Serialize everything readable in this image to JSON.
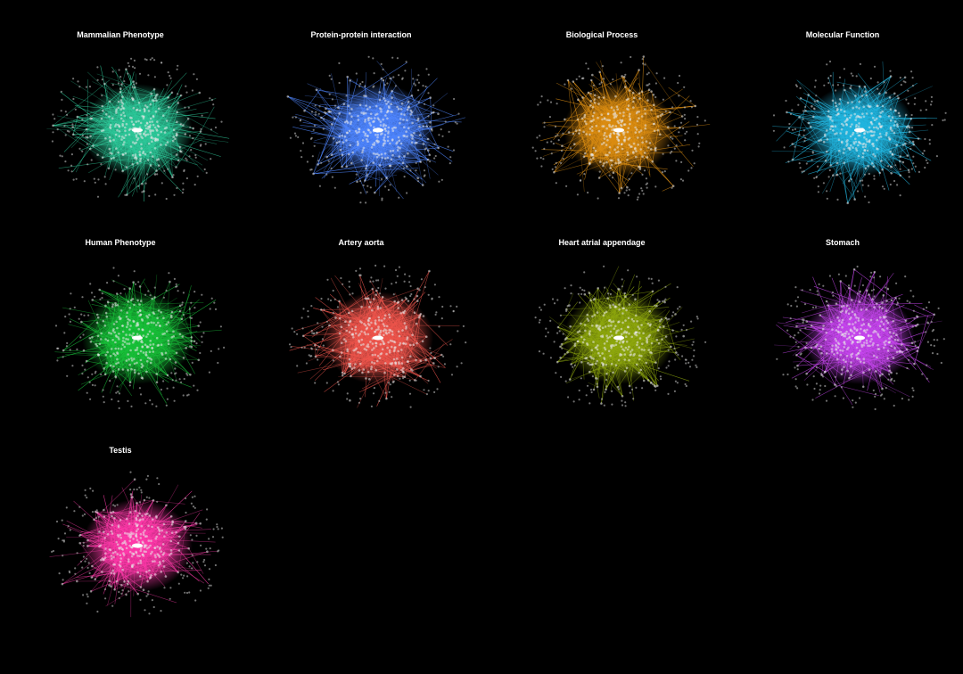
{
  "figure": {
    "panels": [
      {
        "title": "Mammalian Phenotype",
        "color": "#2ec99a"
      },
      {
        "title": "Protein-protein interaction",
        "color": "#4f86ff"
      },
      {
        "title": "Biological Process",
        "color": "#dd8e12"
      },
      {
        "title": "Molecular Function",
        "color": "#22b6e0"
      },
      {
        "title": "Human Phenotype",
        "color": "#19c23a"
      },
      {
        "title": "Artery aorta",
        "color": "#f0564d"
      },
      {
        "title": "Heart atrial appendage",
        "color": "#8fa80e"
      },
      {
        "title": "Stomach",
        "color": "#c646ee"
      },
      {
        "title": "Testis",
        "color": "#ff3aaa"
      }
    ],
    "node_color": "#bbbbbb",
    "background": "#000000"
  }
}
